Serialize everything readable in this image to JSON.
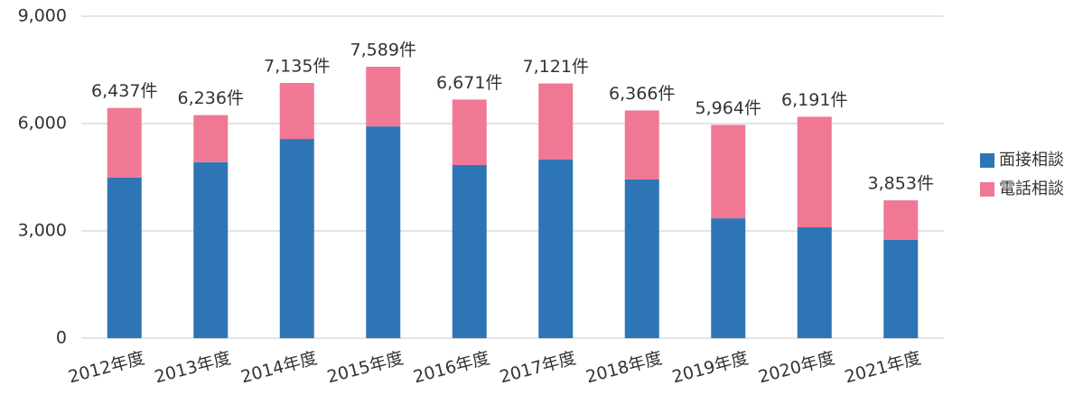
{
  "chart_data": {
    "type": "stacked_bar",
    "categories": [
      "2012年度",
      "2013年度",
      "2014年度",
      "2015年度",
      "2016年度",
      "2017年度",
      "2018年度",
      "2019年度",
      "2020年度",
      "2021年度"
    ],
    "series": [
      {
        "name": "面接相談",
        "color": "#2e75b6",
        "values": [
          4490,
          4920,
          5570,
          5920,
          4840,
          5000,
          4440,
          3350,
          3100,
          2750
        ]
      },
      {
        "name": "電話相談",
        "color": "#f07895",
        "values": [
          1947,
          1316,
          1565,
          1669,
          1831,
          2121,
          1926,
          2614,
          3091,
          1103
        ]
      }
    ],
    "totals": {
      "values": [
        6437,
        6236,
        7135,
        7589,
        6671,
        7121,
        6366,
        5964,
        6191,
        3853
      ],
      "value_labels": [
        "6,437件",
        "6,236件",
        "7,135件",
        "7,589件",
        "6,671件",
        "7,121件",
        "6,366件",
        "5,964件",
        "6,191件",
        "3,853件"
      ]
    },
    "ylim": [
      0,
      9000
    ],
    "yticks": [
      0,
      {
        "value": 3000,
        "label": "3,000"
      },
      {
        "value": 6000,
        "label": "6,000"
      },
      {
        "value": 9000,
        "label": "9,000"
      }
    ],
    "grid": true,
    "legend": "right"
  }
}
